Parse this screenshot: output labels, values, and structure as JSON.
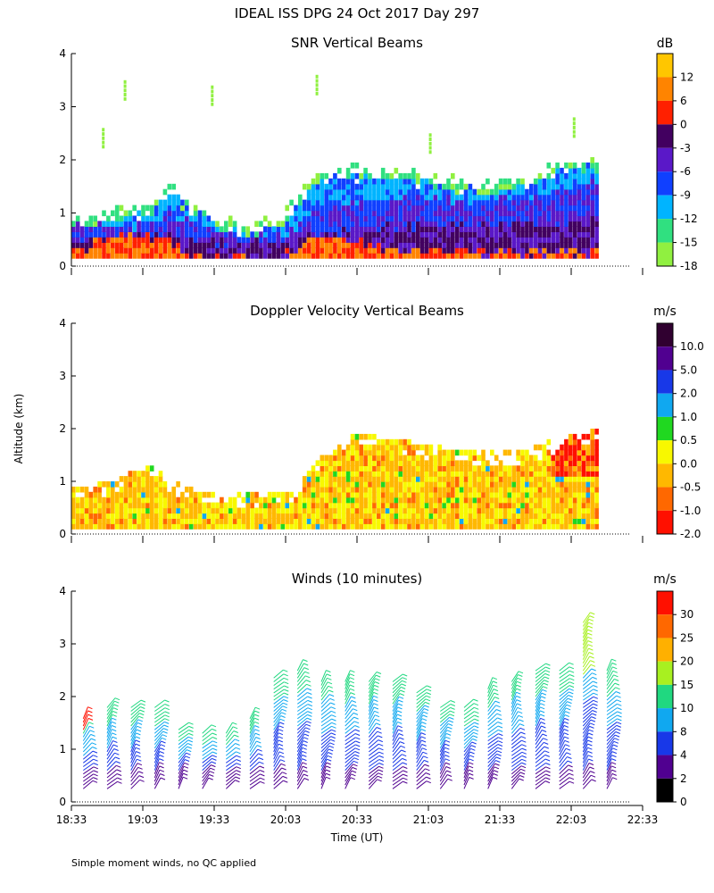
{
  "figure_title": "IDEAL ISS DPG  24 Oct 2017 Day 297",
  "y_axis_label": "Altitude (km)",
  "x_axis_label": "Time (UT)",
  "footnote": "Simple moment winds, no QC applied",
  "chart_data": [
    {
      "type": "heatmap",
      "title": "SNR Vertical Beams",
      "ylim": [
        0,
        4
      ],
      "yticks": [
        "0",
        "1",
        "2",
        "3",
        "4"
      ],
      "colorbar": {
        "unit": "dB",
        "labels": [
          "12",
          "6",
          "0",
          "-3",
          "-6",
          "-9",
          "-12",
          "-15",
          "-18"
        ],
        "colors": [
          "#ffc600",
          "#ff8400",
          "#ff2000",
          "#420060",
          "#5a18c8",
          "#1040ff",
          "#00b4ff",
          "#30e080",
          "#90f040"
        ]
      },
      "columns": [
        {
          "time": 0.05,
          "top": 0.85,
          "mid": 0.7,
          "core": 0.45,
          "hot": 0.25
        },
        {
          "time": 0.45,
          "top": 1.0,
          "mid": 0.75,
          "core": 0.55,
          "hot": 0.55
        },
        {
          "time": 0.85,
          "top": 1.05,
          "mid": 0.7,
          "core": 0.55,
          "hot": 0.5
        },
        {
          "time": 1.1,
          "top": 1.45,
          "mid": 0.95,
          "core": 0.55,
          "hot": 0.4
        },
        {
          "time": 1.35,
          "top": 1.15,
          "mid": 0.8,
          "core": 0.45,
          "hot": 0.15
        },
        {
          "time": 1.75,
          "top": 0.8,
          "mid": 0.6,
          "core": 0.4,
          "hot": 0.1
        },
        {
          "time": 2.1,
          "top": 0.75,
          "mid": 0.6,
          "core": 0.4,
          "hot": 0.1
        },
        {
          "time": 2.4,
          "top": 0.9,
          "mid": 0.55,
          "core": 0.35,
          "hot": 0.15
        },
        {
          "time": 2.8,
          "top": 1.7,
          "mid": 1.0,
          "core": 0.55,
          "hot": 0.5
        },
        {
          "time": 3.2,
          "top": 1.8,
          "mid": 1.15,
          "core": 0.6,
          "hot": 0.45
        },
        {
          "time": 3.7,
          "top": 1.75,
          "mid": 1.2,
          "core": 0.7,
          "hot": 0.25
        },
        {
          "time": 4.2,
          "top": 1.6,
          "mid": 1.25,
          "core": 0.75,
          "hot": 0.25
        },
        {
          "time": 4.7,
          "top": 1.5,
          "mid": 1.2,
          "core": 0.7,
          "hot": 0.2
        },
        {
          "time": 5.2,
          "top": 1.6,
          "mid": 1.25,
          "core": 0.75,
          "hot": 0.2
        },
        {
          "time": 5.6,
          "top": 1.9,
          "mid": 1.4,
          "core": 0.8,
          "hot": 0.2
        },
        {
          "time": 5.95,
          "top": 1.95,
          "mid": 1.5,
          "core": 0.85,
          "hot": 0.2
        }
      ]
    },
    {
      "type": "heatmap",
      "title": "Doppler Velocity Vertical Beams",
      "ylim": [
        0,
        4
      ],
      "yticks": [
        "0",
        "1",
        "2",
        "3",
        "4"
      ],
      "colorbar": {
        "unit": "m/s",
        "labels": [
          "10.0",
          "5.0",
          "2.0",
          "1.0",
          "0.5",
          "0.0",
          "-0.5",
          "-1.0",
          "-2.0"
        ],
        "colors": [
          "#300030",
          "#500090",
          "#1838e8",
          "#10a8f0",
          "#20d820",
          "#f8f800",
          "#ffb800",
          "#ff6800",
          "#ff1000"
        ]
      },
      "columns": [
        {
          "time": 0.05,
          "top": 0.85
        },
        {
          "time": 0.45,
          "top": 0.95
        },
        {
          "time": 0.85,
          "top": 1.3
        },
        {
          "time": 1.2,
          "top": 0.95
        },
        {
          "time": 1.5,
          "top": 0.8
        },
        {
          "time": 1.8,
          "top": 0.75
        },
        {
          "time": 2.2,
          "top": 0.7
        },
        {
          "time": 2.55,
          "top": 0.8
        },
        {
          "time": 2.8,
          "top": 1.4
        },
        {
          "time": 3.2,
          "top": 1.9
        },
        {
          "time": 3.7,
          "top": 1.75
        },
        {
          "time": 4.2,
          "top": 1.6
        },
        {
          "time": 4.7,
          "top": 1.5
        },
        {
          "time": 5.2,
          "top": 1.55
        },
        {
          "time": 5.6,
          "top": 1.8
        },
        {
          "time": 5.95,
          "top": 1.95
        }
      ]
    },
    {
      "type": "barbs",
      "title": "Winds (10 minutes)",
      "ylim": [
        0,
        4
      ],
      "yticks": [
        "0",
        "1",
        "2",
        "3",
        "4"
      ],
      "xlim": [
        0,
        4
      ],
      "xticks": [
        "18:33",
        "19:03",
        "19:33",
        "20:03",
        "20:33",
        "21:03",
        "21:33",
        "22:03",
        "22:33"
      ],
      "colorbar": {
        "unit": "m/s",
        "labels": [
          "30",
          "25",
          "20",
          "15",
          "10",
          "8",
          "4",
          "2",
          "0"
        ],
        "colors": [
          "#ff1000",
          "#ff6800",
          "#ffb000",
          "#a8f020",
          "#20d880",
          "#10a8f0",
          "#1838e8",
          "#500090",
          "#000000"
        ]
      },
      "profiles": [
        {
          "time": 0.083,
          "top": 1.6
        },
        {
          "time": 0.25,
          "top": 1.8
        },
        {
          "time": 0.417,
          "top": 1.8
        },
        {
          "time": 0.583,
          "top": 1.8
        },
        {
          "time": 0.75,
          "top": 1.4
        },
        {
          "time": 0.917,
          "top": 1.35
        },
        {
          "time": 1.083,
          "top": 1.35
        },
        {
          "time": 1.25,
          "top": 1.6
        },
        {
          "time": 1.417,
          "top": 2.4
        },
        {
          "time": 1.583,
          "top": 2.55
        },
        {
          "time": 1.75,
          "top": 2.35
        },
        {
          "time": 1.917,
          "top": 2.3
        },
        {
          "time": 2.083,
          "top": 2.3
        },
        {
          "time": 2.25,
          "top": 2.3
        },
        {
          "time": 2.417,
          "top": 2.1
        },
        {
          "time": 2.583,
          "top": 1.85
        },
        {
          "time": 2.75,
          "top": 1.8
        },
        {
          "time": 2.917,
          "top": 2.2
        },
        {
          "time": 3.083,
          "top": 2.35
        },
        {
          "time": 3.25,
          "top": 2.5
        },
        {
          "time": 3.417,
          "top": 2.55
        },
        {
          "time": 3.583,
          "top": 3.4
        },
        {
          "time": 3.75,
          "top": 2.5
        }
      ]
    }
  ]
}
